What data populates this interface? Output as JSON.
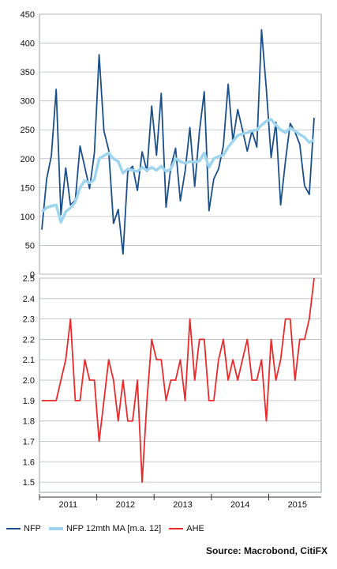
{
  "chart_data": [
    {
      "type": "line",
      "panel": "top",
      "ylim": [
        0,
        450
      ],
      "yticks": [
        "0",
        "50",
        "100",
        "150",
        "200",
        "250",
        "300",
        "350",
        "400",
        "450"
      ],
      "grid": true,
      "series": [
        {
          "name": "NFP",
          "color": "#1b4f8a",
          "values": [
            77,
            165,
            205,
            320,
            103,
            184,
            120,
            128,
            222,
            185,
            148,
            210,
            380,
            248,
            215,
            88,
            112,
            35,
            178,
            187,
            145,
            212,
            178,
            291,
            206,
            313,
            116,
            185,
            218,
            127,
            179,
            254,
            152,
            247,
            316,
            110,
            165,
            182,
            222,
            329,
            230,
            285,
            250,
            213,
            248,
            220,
            423,
            320,
            202,
            263,
            120,
            196,
            261,
            246,
            225,
            153,
            138,
            271
          ]
        },
        {
          "name": "NFP 12mth MA [m.a. 12]",
          "color": "#9dd4ee",
          "values": [
            108,
            115,
            118,
            120,
            90,
            108,
            115,
            125,
            150,
            162,
            158,
            164,
            200,
            205,
            210,
            200,
            195,
            175,
            182,
            180,
            178,
            185,
            180,
            185,
            180,
            187,
            178,
            182,
            200,
            195,
            192,
            195,
            194,
            196,
            210,
            185,
            200,
            204,
            206,
            220,
            230,
            240,
            243,
            245,
            248,
            250,
            258,
            265,
            268,
            258,
            250,
            245,
            253,
            248,
            242,
            237,
            228,
            233
          ]
        }
      ]
    },
    {
      "type": "line",
      "panel": "bottom",
      "ylim": [
        1.45,
        2.5
      ],
      "yticks": [
        "1.5",
        "1.6",
        "1.7",
        "1.8",
        "1.9",
        "2.0",
        "2.1",
        "2.2",
        "2.3",
        "2.4",
        "2.5"
      ],
      "grid": true,
      "x_labels": [
        "2011",
        "2012",
        "2013",
        "2014",
        "2015"
      ],
      "series": [
        {
          "name": "AHE",
          "color": "#e82a2a",
          "values": [
            1.9,
            1.9,
            1.9,
            1.9,
            2.0,
            2.1,
            2.3,
            1.9,
            1.9,
            2.1,
            2.0,
            2.0,
            1.7,
            1.9,
            2.1,
            2.0,
            1.8,
            2.0,
            1.8,
            1.8,
            2.0,
            1.5,
            1.9,
            2.2,
            2.1,
            2.1,
            1.9,
            2.0,
            2.0,
            2.1,
            1.9,
            2.3,
            2.0,
            2.2,
            2.2,
            1.9,
            1.9,
            2.1,
            2.2,
            2.0,
            2.1,
            2.0,
            2.1,
            2.2,
            2.0,
            2.0,
            2.1,
            1.8,
            2.2,
            2.0,
            2.1,
            2.3,
            2.3,
            2.0,
            2.2,
            2.2,
            2.3,
            2.5
          ]
        }
      ]
    }
  ],
  "legend": [
    {
      "label": "NFP",
      "color": "#1b4f8a"
    },
    {
      "label": "NFP 12mth MA [m.a. 12]",
      "color": "#9dd4ee"
    },
    {
      "label": "AHE",
      "color": "#e82a2a"
    }
  ],
  "source": "Source: Macrobond, CitiFX"
}
